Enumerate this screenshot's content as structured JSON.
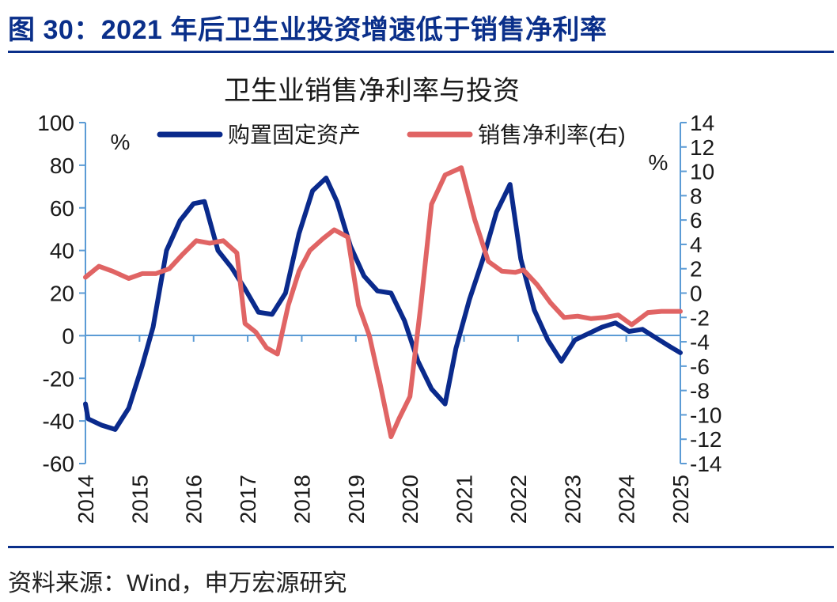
{
  "header": {
    "figure_title": "图 30：2021 年后卫生业投资增速低于销售净利率"
  },
  "footer": {
    "source": "资料来源：Wind，申万宏源研究"
  },
  "colors": {
    "title": "#0a2f8a",
    "series_left": "#0a2a8c",
    "series_right": "#e06464",
    "axis": "#5b9bd5"
  },
  "chart_data": {
    "type": "line",
    "title": "卫生业销售净利率与投资",
    "left_axis": {
      "unit": "%",
      "ylim": [
        -60,
        100
      ],
      "ticks": [
        "100",
        "80",
        "60",
        "40",
        "20",
        "0",
        "-20",
        "-40",
        "-60"
      ]
    },
    "right_axis": {
      "unit": "%",
      "ylim": [
        -14,
        14
      ],
      "ticks": [
        "14",
        "12",
        "10",
        "8",
        "6",
        "4",
        "2",
        "0",
        "-2",
        "-4",
        "-6",
        "-8",
        "-10",
        "-12",
        "-14"
      ]
    },
    "x_ticks": [
      "2014",
      "2015",
      "2016",
      "2017",
      "2018",
      "2019",
      "2020",
      "2021",
      "2022",
      "2023",
      "2024",
      "2025"
    ],
    "xlim": [
      2014.0,
      2025.0
    ],
    "legend": {
      "placement": "top"
    },
    "series": [
      {
        "name": "购置固定资产",
        "axis": "left",
        "color": "#0a2a8c",
        "x": [
          2014.0,
          2014.05,
          2014.3,
          2014.55,
          2014.8,
          2015.05,
          2015.25,
          2015.5,
          2015.75,
          2016.0,
          2016.2,
          2016.45,
          2016.7,
          2016.95,
          2017.2,
          2017.45,
          2017.7,
          2017.95,
          2018.2,
          2018.45,
          2018.65,
          2018.9,
          2019.15,
          2019.4,
          2019.65,
          2019.9,
          2020.15,
          2020.4,
          2020.65,
          2020.85,
          2021.1,
          2021.35,
          2021.6,
          2021.85,
          2022.05,
          2022.3,
          2022.55,
          2022.8,
          2023.05,
          2023.3,
          2023.55,
          2023.8,
          2024.05,
          2024.3,
          2024.55,
          2024.8,
          2025.0
        ],
        "values": [
          -32,
          -39,
          -42,
          -44,
          -34,
          -14,
          4,
          40,
          54,
          62,
          63,
          40,
          32,
          22,
          11,
          10,
          20,
          48,
          68,
          74,
          63,
          42,
          28,
          21,
          20,
          7,
          -12,
          -25,
          -32,
          -6,
          17,
          36,
          58,
          71,
          36,
          12,
          -2,
          -12,
          -2,
          1,
          4,
          6,
          2,
          3,
          -1,
          -5,
          -8
        ]
      },
      {
        "name": "销售净利率(右)",
        "axis": "right",
        "color": "#e06464",
        "x": [
          2014.0,
          2014.25,
          2014.5,
          2014.8,
          2015.05,
          2015.3,
          2015.55,
          2015.8,
          2016.05,
          2016.3,
          2016.55,
          2016.8,
          2016.95,
          2017.15,
          2017.35,
          2017.55,
          2017.75,
          2017.95,
          2018.15,
          2018.4,
          2018.6,
          2018.85,
          2019.05,
          2019.25,
          2019.45,
          2019.65,
          2019.8,
          2020.0,
          2020.2,
          2020.4,
          2020.65,
          2020.95,
          2021.2,
          2021.45,
          2021.7,
          2021.95,
          2022.1,
          2022.35,
          2022.6,
          2022.85,
          2023.1,
          2023.35,
          2023.6,
          2023.85,
          2024.1,
          2024.4,
          2024.65,
          2024.85,
          2025.0
        ],
        "values": [
          1.3,
          2.2,
          1.8,
          1.2,
          1.6,
          1.6,
          2.0,
          3.2,
          4.3,
          4.1,
          4.3,
          3.3,
          -2.5,
          -3.2,
          -4.5,
          -5.0,
          -1.0,
          1.8,
          3.5,
          4.5,
          5.2,
          4.6,
          -1.0,
          -3.5,
          -7.5,
          -11.8,
          -10.3,
          -8.5,
          -1.0,
          7.3,
          9.7,
          10.3,
          6.0,
          2.6,
          1.8,
          1.7,
          1.9,
          0.7,
          -0.8,
          -2.0,
          -1.9,
          -2.1,
          -2.0,
          -1.8,
          -2.6,
          -1.6,
          -1.5,
          -1.5,
          -1.5
        ]
      }
    ]
  }
}
